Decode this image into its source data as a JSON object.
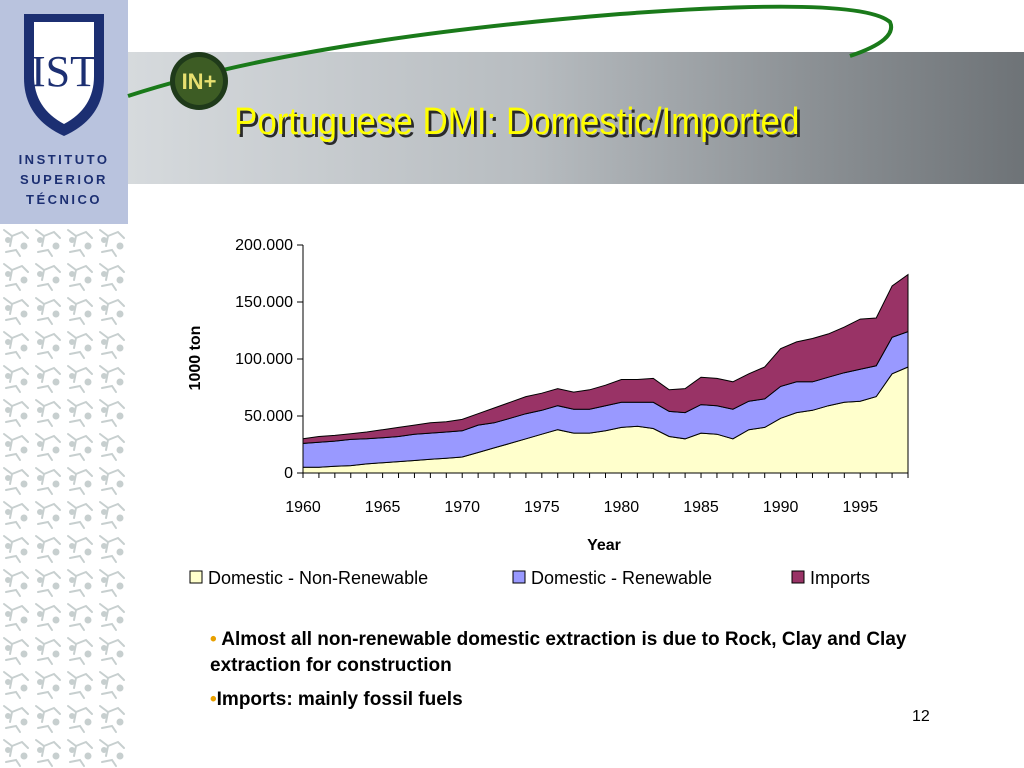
{
  "slide": {
    "title": "Portuguese DMI: Domestic/Imported",
    "page_number": "12",
    "logo": {
      "line1": "INSTITUTO",
      "line2": "SUPERIOR",
      "line3": "TÉCNICO",
      "mark": "IST"
    },
    "badge": "IN+"
  },
  "bullets": [
    {
      "marker": "•",
      "text": " Almost all non-renewable domestic extraction is due to Rock, Clay and Clay extraction for construction"
    },
    {
      "marker": "•",
      "text": "Imports: mainly fossil fuels"
    }
  ],
  "chart_data": {
    "type": "area",
    "stacked": true,
    "xlabel": "Year",
    "ylabel": "1000 ton",
    "xlim": [
      1960,
      1998
    ],
    "ylim": [
      0,
      200000
    ],
    "y_ticks": [
      "0",
      "50.000",
      "100.000",
      "150.000",
      "200.000"
    ],
    "y_tick_values": [
      0,
      50000,
      100000,
      150000,
      200000
    ],
    "x_ticks": [
      "1960",
      "1965",
      "1970",
      "1975",
      "1980",
      "1985",
      "1990",
      "1995"
    ],
    "x_tick_values": [
      1960,
      1965,
      1970,
      1975,
      1980,
      1985,
      1990,
      1995
    ],
    "legend_position": "bottom",
    "grid": false,
    "x": [
      1960,
      1961,
      1962,
      1963,
      1964,
      1965,
      1966,
      1967,
      1968,
      1969,
      1970,
      1971,
      1972,
      1973,
      1974,
      1975,
      1976,
      1977,
      1978,
      1979,
      1980,
      1981,
      1982,
      1983,
      1984,
      1985,
      1986,
      1987,
      1988,
      1989,
      1990,
      1991,
      1992,
      1993,
      1994,
      1995,
      1996,
      1997,
      1998
    ],
    "series": [
      {
        "name": "Domestic - Non-Renewable",
        "color": "#ffffcc",
        "values": [
          5000,
          5000,
          6000,
          6500,
          8000,
          9000,
          10000,
          11000,
          12000,
          13000,
          14000,
          18000,
          22000,
          26000,
          30000,
          34000,
          38000,
          35000,
          35000,
          37000,
          40000,
          41000,
          39000,
          32000,
          30000,
          35000,
          34000,
          30000,
          38000,
          40000,
          48000,
          53000,
          55000,
          59000,
          62000,
          63000,
          67000,
          87000,
          93000
        ]
      },
      {
        "name": "Domestic - Renewable",
        "color": "#9999ff",
        "values": [
          21000,
          22000,
          22000,
          23000,
          22000,
          22000,
          22000,
          23000,
          23000,
          23000,
          23000,
          24000,
          22000,
          22000,
          22000,
          21000,
          21000,
          21000,
          21000,
          22000,
          22000,
          21000,
          23000,
          22000,
          23000,
          25000,
          25000,
          26000,
          25000,
          25000,
          28000,
          27000,
          25000,
          25000,
          26000,
          28000,
          27000,
          32000,
          31000
        ]
      },
      {
        "name": "Imports",
        "color": "#993366",
        "values": [
          4000,
          5000,
          5000,
          5000,
          6000,
          7000,
          8000,
          8000,
          9000,
          9000,
          10000,
          10000,
          13000,
          14000,
          15000,
          15000,
          15000,
          15000,
          17000,
          18000,
          20000,
          20000,
          21000,
          19000,
          21000,
          24000,
          24000,
          24000,
          24000,
          28000,
          33000,
          35000,
          38000,
          38000,
          40000,
          44000,
          42000,
          45000,
          50000
        ]
      }
    ]
  }
}
